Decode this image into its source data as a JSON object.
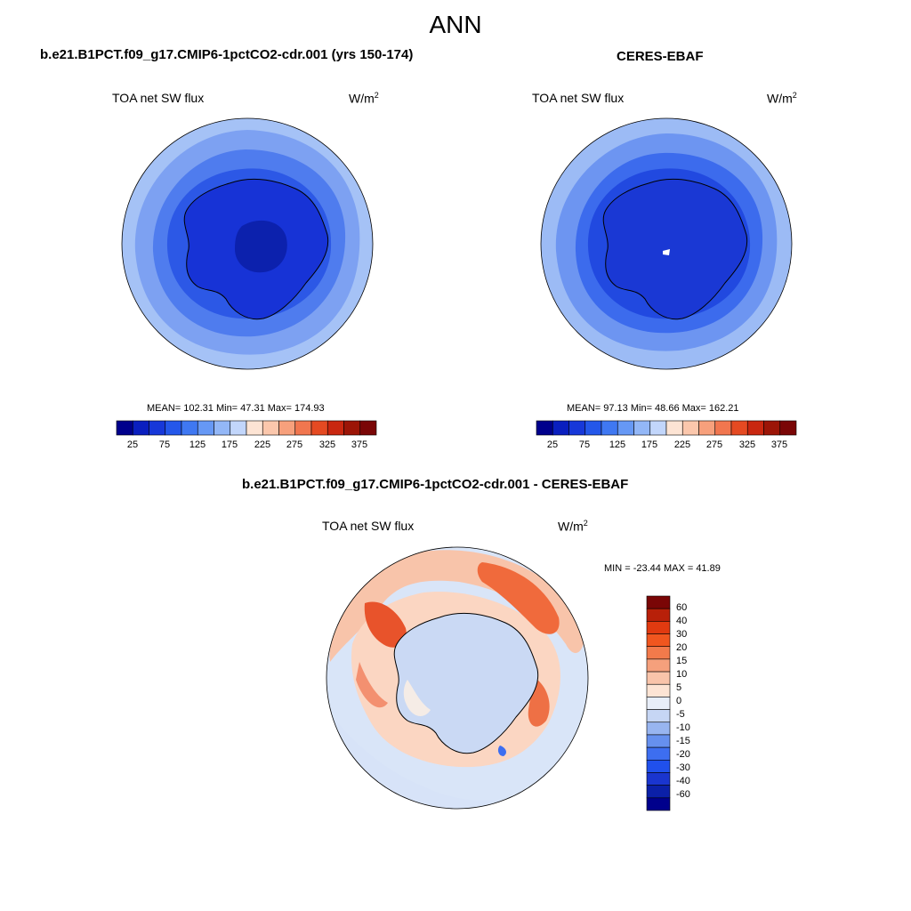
{
  "main_title": "ANN",
  "panels": [
    {
      "title": "b.e21.B1PCT.f09_g17.CMIP6-1pctCO2-cdr.001 (yrs 150-174)",
      "variable": "TOA net SW flux",
      "units_base": "W/m",
      "units_exp": "2",
      "stats": "MEAN= 102.31  Min=  47.31  Max= 174.93",
      "stats_values": {
        "mean": 102.31,
        "min": 47.31,
        "max": 174.93
      }
    },
    {
      "title": "CERES-EBAF",
      "variable": "TOA net SW flux",
      "units_base": "W/m",
      "units_exp": "2",
      "stats": "MEAN=  97.13  Min=  48.66  Max= 162.21",
      "stats_values": {
        "mean": 97.13,
        "min": 48.66,
        "max": 162.21
      }
    },
    {
      "title": "b.e21.B1PCT.f09_g17.CMIP6-1pctCO2-cdr.001 - CERES-EBAF",
      "variable": "TOA net SW flux",
      "units_base": "W/m",
      "units_exp": "2",
      "stats": "MIN = -23.44 MAX =  41.89",
      "stats_values": {
        "min": -23.44,
        "max": 41.89
      }
    }
  ],
  "colorbar_horizontal": {
    "colors": [
      "#00008c",
      "#0a1fbf",
      "#1738d9",
      "#2457ea",
      "#3f78f2",
      "#6698f5",
      "#93b7f7",
      "#c2d6fb",
      "#fde4d4",
      "#fbc7ac",
      "#f7a07c",
      "#f1764f",
      "#e54a22",
      "#c92710",
      "#9c1507",
      "#7a0606"
    ],
    "tick_labels": [
      "25",
      "75",
      "125",
      "175",
      "225",
      "275",
      "325",
      "375"
    ]
  },
  "colorbar_vertical": {
    "colors_top_to_bottom": [
      "#7a0606",
      "#b82009",
      "#e13a10",
      "#f0561f",
      "#f27a4b",
      "#f5a07c",
      "#f9c4aa",
      "#fde4d4",
      "#e8eef9",
      "#c6d6f4",
      "#98b5f0",
      "#6690ee",
      "#3d6ef0",
      "#2050ec",
      "#1a35cf",
      "#0b20a8",
      "#00008c"
    ],
    "tick_labels": [
      "60",
      "40",
      "30",
      "20",
      "15",
      "10",
      "5",
      "0",
      "-5",
      "-10",
      "-15",
      "-20",
      "-30",
      "-40",
      "-60"
    ]
  },
  "colors": {
    "map_ocean_outer": "#9ebdf6",
    "map_ocean_mid": "#5a86ef",
    "map_ocean_inner": "#2f60ea",
    "map_land": "#1436d2",
    "map_land_low": "#0a20ae",
    "diff_positive": "#f6a07e",
    "diff_negative": "#c6d6f4"
  }
}
